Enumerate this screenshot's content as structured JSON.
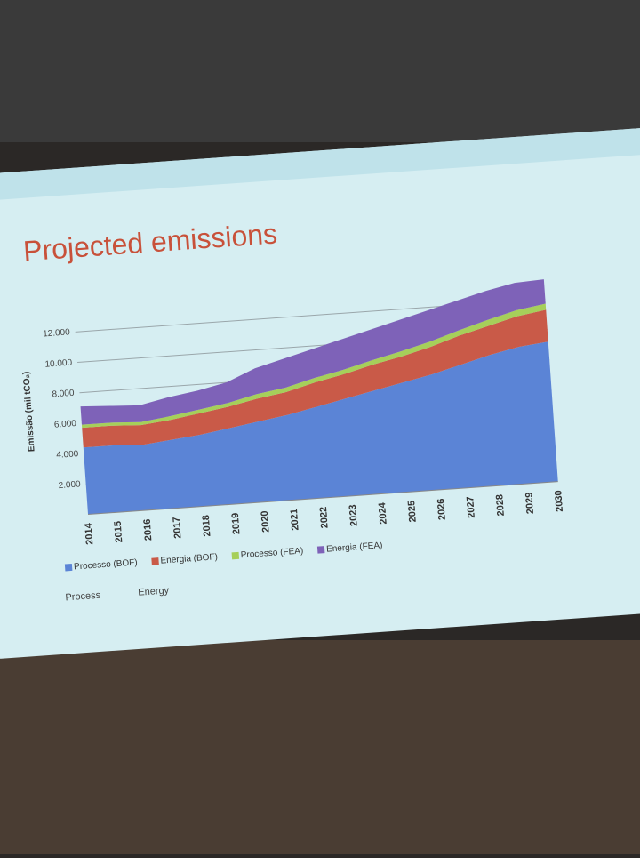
{
  "chart_data": {
    "type": "stacked-area",
    "title": "Projected emissions",
    "y_label": "Emissão (mil tCO₂)",
    "categories": [
      "2014",
      "2015",
      "2016",
      "2017",
      "2018",
      "2019",
      "2020",
      "2021",
      "2022",
      "2023",
      "2024",
      "2025",
      "2026",
      "2027",
      "2028",
      "2029",
      "2030"
    ],
    "series": [
      {
        "name": "Processo (BOF)",
        "color": "#5b84d6",
        "values": [
          4400,
          4400,
          4300,
          4500,
          4700,
          5000,
          5300,
          5600,
          6000,
          6400,
          6800,
          7200,
          7600,
          8100,
          8600,
          9000,
          9200
        ]
      },
      {
        "name": "Energia (BOF)",
        "color": "#c95a48",
        "values": [
          1300,
          1300,
          1300,
          1300,
          1400,
          1400,
          1500,
          1500,
          1600,
          1600,
          1700,
          1700,
          1800,
          1900,
          1900,
          2000,
          2100
        ]
      },
      {
        "name": "Processo (FEA)",
        "color": "#a6cf5a",
        "values": [
          200,
          200,
          200,
          250,
          250,
          250,
          300,
          300,
          300,
          300,
          300,
          350,
          350,
          350,
          400,
          400,
          400
        ]
      },
      {
        "name": "Energia (FEA)",
        "color": "#7e62b8",
        "values": [
          1200,
          1100,
          1100,
          1250,
          1250,
          1350,
          1700,
          1900,
          1900,
          2000,
          2000,
          2050,
          2050,
          1950,
          1900,
          1800,
          1600
        ]
      }
    ],
    "ylim": [
      0,
      14000
    ],
    "yticks": [
      {
        "value": 2000,
        "label": "2.000"
      },
      {
        "value": 4000,
        "label": "4.000"
      },
      {
        "value": 6000,
        "label": "6.000"
      },
      {
        "value": 8000,
        "label": "8.000"
      },
      {
        "value": 10000,
        "label": "10.000"
      },
      {
        "value": 12000,
        "label": "12.000"
      }
    ],
    "grid": true,
    "legend": "bottom",
    "notes": [
      "Process",
      "Energy"
    ]
  }
}
